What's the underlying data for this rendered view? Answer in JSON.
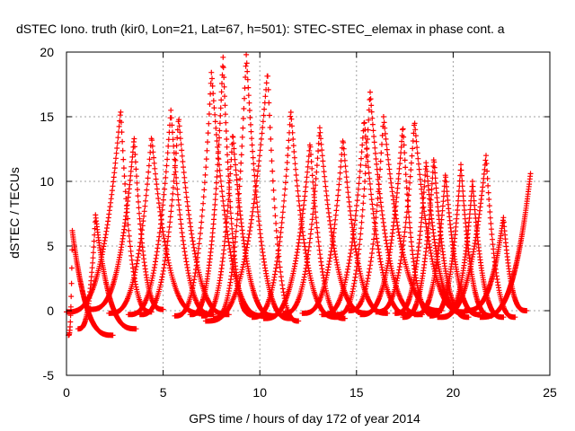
{
  "chart_data": {
    "type": "scatter",
    "title": "dSTEC Iono. truth (kir0, Lon=21, Lat=67, h=501): STEC-STEC_elemax in phase cont. a",
    "xlabel": "GPS time / hours of day 172 of year 2014",
    "ylabel": "dSTEC  / TECUs",
    "xlim": [
      0,
      25
    ],
    "ylim": [
      -5,
      20
    ],
    "xticks": [
      0,
      5,
      10,
      15,
      20,
      25
    ],
    "yticks": [
      -5,
      0,
      5,
      10,
      15,
      20
    ],
    "grid": true,
    "legend": "none",
    "marker": "plus",
    "color": "#ff0000",
    "arcs": [
      {
        "t_start": 0.1,
        "t_peak": 0.3,
        "t_end": 2.4,
        "peak": 6.2,
        "floor": -1.9
      },
      {
        "t_start": 0.0,
        "t_peak": 2.8,
        "t_end": 4.4,
        "peak": 15.5,
        "floor": -0.1
      },
      {
        "t_start": 0.6,
        "t_peak": 1.5,
        "t_end": 3.6,
        "peak": 7.4,
        "floor": -1.4
      },
      {
        "t_start": 1.2,
        "t_peak": 3.5,
        "t_end": 5.0,
        "peak": 13.4,
        "floor": 0.1
      },
      {
        "t_start": 2.2,
        "t_peak": 4.4,
        "t_end": 7.0,
        "peak": 13.5,
        "floor": -0.2
      },
      {
        "t_start": 3.2,
        "t_peak": 5.4,
        "t_end": 7.6,
        "peak": 15.5,
        "floor": -0.3
      },
      {
        "t_start": 3.8,
        "t_peak": 5.8,
        "t_end": 8.4,
        "peak": 15.0,
        "floor": -0.3
      },
      {
        "t_start": 5.6,
        "t_peak": 7.5,
        "t_end": 10.2,
        "peak": 18.5,
        "floor": -0.4
      },
      {
        "t_start": 6.4,
        "t_peak": 8.1,
        "t_end": 9.6,
        "peak": 19.6,
        "floor": -0.3
      },
      {
        "t_start": 7.0,
        "t_peak": 8.6,
        "t_end": 10.8,
        "peak": 13.7,
        "floor": -0.4
      },
      {
        "t_start": 7.6,
        "t_peak": 9.3,
        "t_end": 11.6,
        "peak": 19.8,
        "floor": -0.6
      },
      {
        "t_start": 7.2,
        "t_peak": 10.4,
        "t_end": 12.0,
        "peak": 18.5,
        "floor": -0.8
      },
      {
        "t_start": 9.6,
        "t_peak": 11.6,
        "t_end": 14.0,
        "peak": 15.5,
        "floor": -0.5
      },
      {
        "t_start": 10.2,
        "t_peak": 12.6,
        "t_end": 14.4,
        "peak": 13.0,
        "floor": -0.6
      },
      {
        "t_start": 11.2,
        "t_peak": 13.1,
        "t_end": 15.6,
        "peak": 14.2,
        "floor": -0.2
      },
      {
        "t_start": 12.2,
        "t_peak": 14.3,
        "t_end": 16.6,
        "peak": 13.3,
        "floor": -0.2
      },
      {
        "t_start": 13.2,
        "t_peak": 15.4,
        "t_end": 17.8,
        "peak": 14.8,
        "floor": -0.3
      },
      {
        "t_start": 14.0,
        "t_peak": 15.7,
        "t_end": 18.4,
        "peak": 17.0,
        "floor": -0.3
      },
      {
        "t_start": 14.6,
        "t_peak": 16.4,
        "t_end": 19.4,
        "peak": 15.0,
        "floor": 0.0
      },
      {
        "t_start": 15.2,
        "t_peak": 17.4,
        "t_end": 19.0,
        "peak": 14.3,
        "floor": -0.3
      },
      {
        "t_start": 16.0,
        "t_peak": 18.0,
        "t_end": 20.6,
        "peak": 14.7,
        "floor": -0.1
      },
      {
        "t_start": 17.0,
        "t_peak": 18.6,
        "t_end": 20.6,
        "peak": 11.5,
        "floor": -0.2
      },
      {
        "t_start": 17.4,
        "t_peak": 19.0,
        "t_end": 20.8,
        "peak": 11.8,
        "floor": -0.5
      },
      {
        "t_start": 18.0,
        "t_peak": 19.6,
        "t_end": 21.4,
        "peak": 10.6,
        "floor": -0.3
      },
      {
        "t_start": 18.8,
        "t_peak": 20.4,
        "t_end": 22.0,
        "peak": 11.3,
        "floor": -0.4
      },
      {
        "t_start": 19.4,
        "t_peak": 21.0,
        "t_end": 22.6,
        "peak": 10.0,
        "floor": -0.5
      },
      {
        "t_start": 19.2,
        "t_peak": 21.7,
        "t_end": 23.2,
        "peak": 12.0,
        "floor": -0.5
      },
      {
        "t_start": 20.6,
        "t_peak": 22.6,
        "t_end": 23.8,
        "peak": 7.2,
        "floor": 0.0
      },
      {
        "t_start": 21.4,
        "t_peak": 24.0,
        "t_end": 24.0,
        "peak": 10.6,
        "floor": -0.5
      }
    ]
  }
}
